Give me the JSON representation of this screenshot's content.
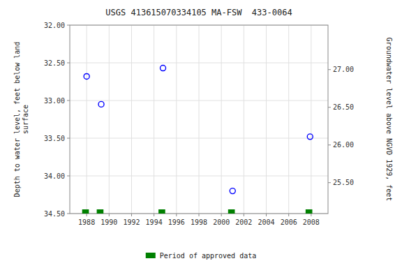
{
  "chart_data": {
    "type": "scatter",
    "title": "USGS 413615070334105 MA-FSW  433-0064",
    "x": [
      1988.0,
      1989.3,
      1994.8,
      2001.0,
      2007.9
    ],
    "values": [
      32.68,
      33.05,
      32.57,
      34.2,
      33.48
    ],
    "color": "#0000ff",
    "marker": "open-circle",
    "xlim": [
      1986.5,
      2009.5
    ],
    "xticks": [
      1988,
      1990,
      1992,
      1994,
      1996,
      1998,
      2000,
      2002,
      2004,
      2006,
      2008
    ],
    "ylim": [
      34.5,
      32.0
    ],
    "yticks": [
      {
        "value": 32.0,
        "label": "32.00"
      },
      {
        "value": 32.5,
        "label": "32.50"
      },
      {
        "value": 33.0,
        "label": "33.00"
      },
      {
        "value": 33.5,
        "label": "33.50"
      },
      {
        "value": 34.0,
        "label": "34.00"
      },
      {
        "value": 34.5,
        "label": "34.50"
      }
    ],
    "ylabel": "Depth to water level, feet below land\nsurface",
    "y2lim": [
      25.09,
      27.59
    ],
    "y2ticks": [
      {
        "value": 25.5,
        "label": "25.50"
      },
      {
        "value": 26.0,
        "label": "26.00"
      },
      {
        "value": 26.5,
        "label": "26.50"
      },
      {
        "value": 27.0,
        "label": "27.00"
      }
    ],
    "y2label": "Groundwater level above NGVD 1929, feet",
    "grid": true,
    "legend": "bottom",
    "periods": {
      "name": "Period of approved data",
      "color": "#008000",
      "start": [
        1987.6,
        1988.9,
        1994.4,
        2000.6,
        2007.5
      ],
      "end": [
        1988.2,
        1989.5,
        1995.0,
        2001.2,
        2008.1
      ]
    }
  }
}
